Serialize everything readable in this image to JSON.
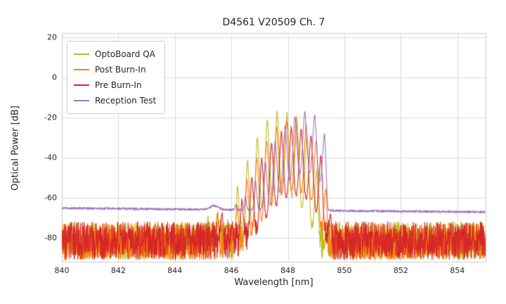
{
  "chart_data": {
    "type": "line",
    "title": "D4561 V20509 Ch. 7",
    "xlabel": "Wavelength [nm]",
    "ylabel": "Optical Power [dB]",
    "xlim": [
      840,
      855
    ],
    "ylim": [
      -92,
      22
    ],
    "xticks": [
      840,
      842,
      844,
      846,
      848,
      850,
      852,
      854
    ],
    "yticks": [
      20,
      0,
      -20,
      -40,
      -60,
      -80
    ],
    "grid": true,
    "grid_color": "#dcdcdc",
    "spine_color": "#cccccc",
    "legend_position": "upper-left",
    "mode_spacing_nm": 0.35,
    "series": [
      {
        "name": "OptoBoard QA",
        "color": "#bcbd22",
        "floor": {
          "type": "noisy",
          "range": [
            -91,
            -72
          ]
        },
        "mode_phase_nm": 847.62,
        "mode_depth_db": 40,
        "envelope": [
          [
            844.8,
            -85
          ],
          [
            845.4,
            -63
          ],
          [
            845.8,
            -76
          ],
          [
            846.2,
            -55
          ],
          [
            846.6,
            -40
          ],
          [
            847.0,
            -27
          ],
          [
            847.3,
            -20
          ],
          [
            847.6,
            -17
          ],
          [
            847.9,
            -17.5
          ],
          [
            848.2,
            -20
          ],
          [
            848.5,
            -25
          ],
          [
            848.8,
            -33
          ],
          [
            849.0,
            -45
          ],
          [
            849.2,
            -60
          ],
          [
            849.35,
            -75
          ],
          [
            849.5,
            -88
          ]
        ]
      },
      {
        "name": "Post Burn-In",
        "color": "#ff7f0e",
        "floor": {
          "type": "noisy",
          "range": [
            -91,
            -73
          ]
        },
        "mode_phase_nm": 848.3,
        "mode_depth_db": 36,
        "envelope": [
          [
            845.2,
            -85
          ],
          [
            845.5,
            -68
          ],
          [
            845.9,
            -76
          ],
          [
            846.4,
            -55
          ],
          [
            846.9,
            -40
          ],
          [
            847.3,
            -30
          ],
          [
            847.7,
            -23
          ],
          [
            848.0,
            -20.5
          ],
          [
            848.3,
            -20
          ],
          [
            848.6,
            -22
          ],
          [
            848.85,
            -26
          ],
          [
            849.05,
            -33
          ],
          [
            849.25,
            -45
          ],
          [
            849.4,
            -62
          ],
          [
            849.55,
            -80
          ]
        ]
      },
      {
        "name": "Pre Burn-In",
        "color": "#d62728",
        "floor": {
          "type": "noisy",
          "range": [
            -91,
            -72
          ]
        },
        "mode_phase_nm": 848.12,
        "mode_depth_db": 34,
        "envelope": [
          [
            845.3,
            -85
          ],
          [
            845.6,
            -66
          ],
          [
            846.0,
            -76
          ],
          [
            846.5,
            -56
          ],
          [
            847.0,
            -42
          ],
          [
            847.4,
            -33
          ],
          [
            847.8,
            -27
          ],
          [
            848.1,
            -25
          ],
          [
            848.4,
            -25
          ],
          [
            848.7,
            -27
          ],
          [
            848.95,
            -31
          ],
          [
            849.15,
            -38
          ],
          [
            849.35,
            -50
          ],
          [
            849.5,
            -66
          ],
          [
            849.65,
            -85
          ]
        ]
      },
      {
        "name": "Reception Test",
        "color": "#9e77c2",
        "floor": {
          "type": "smooth",
          "start": -65.3,
          "end": -67.2,
          "noise": 1.1,
          "bump_nm": 845.4,
          "bump_db": 2
        },
        "mode_phase_nm": 848.6,
        "mode_depth_db": 30,
        "envelope": [
          [
            846.0,
            -70
          ],
          [
            846.6,
            -58
          ],
          [
            847.1,
            -45
          ],
          [
            847.5,
            -33
          ],
          [
            847.9,
            -24
          ],
          [
            848.3,
            -19
          ],
          [
            848.6,
            -17
          ],
          [
            848.9,
            -18
          ],
          [
            849.1,
            -21
          ],
          [
            849.3,
            -28
          ],
          [
            849.42,
            -45
          ],
          [
            849.5,
            -62
          ],
          [
            849.6,
            -70
          ]
        ]
      }
    ]
  }
}
